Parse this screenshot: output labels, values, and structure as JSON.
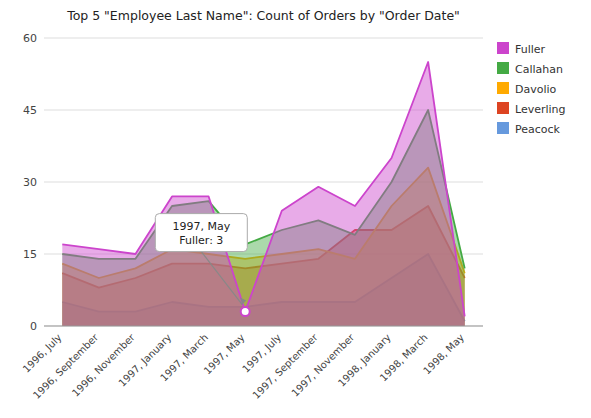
{
  "chart_data": {
    "type": "area",
    "title": "Top 5 \"Employee Last Name\": Count of Orders by \"Order Date\"",
    "categories": [
      "1996, July",
      "1996, September",
      "1996, November",
      "1997, January",
      "1997, March",
      "1997, May",
      "1997, July",
      "1997, September",
      "1997, November",
      "1998, January",
      "1998, March",
      "1998, May"
    ],
    "series": [
      {
        "name": "Fuller",
        "color": "#CC44CC",
        "values": [
          17,
          16,
          15,
          27,
          27,
          3,
          24,
          29,
          25,
          35,
          55,
          2
        ]
      },
      {
        "name": "Callahan",
        "color": "#44AA44",
        "values": [
          15,
          14,
          14,
          25,
          26,
          17,
          20,
          22,
          19,
          30,
          45,
          12
        ]
      },
      {
        "name": "Davolio",
        "color": "#FFAA00",
        "values": [
          13,
          10,
          12,
          16,
          15,
          14,
          15,
          16,
          14,
          25,
          33,
          11
        ]
      },
      {
        "name": "Leverling",
        "color": "#DD4422",
        "values": [
          11,
          8,
          10,
          13,
          13,
          12,
          13,
          14,
          20,
          20,
          25,
          10
        ]
      },
      {
        "name": "Peacock",
        "color": "#6699DD",
        "values": [
          5,
          3,
          3,
          5,
          4,
          4,
          5,
          5,
          5,
          10,
          15,
          1
        ]
      }
    ],
    "ylim": [
      0,
      60
    ],
    "yticks": [
      0,
      15,
      30,
      45,
      60
    ],
    "grid": true,
    "legend": "right",
    "annotations": [
      {
        "text": "1997, May\nFuller: 3",
        "category": "1997, May",
        "series": "Fuller",
        "value": 3
      }
    ]
  }
}
